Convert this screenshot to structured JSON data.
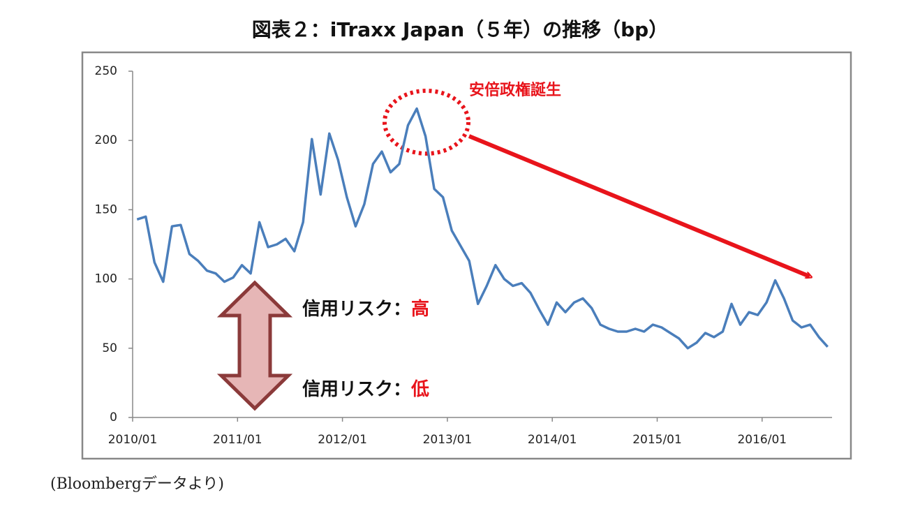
{
  "chart_data": {
    "type": "line",
    "title": "図表２：iTraxx Japan（５年）の推移（bp）",
    "source": "(Bloombergデータより)",
    "annotations": {
      "event": "安倍政権誕生",
      "risk_high_prefix": "信用リスク：",
      "risk_high": "高",
      "risk_low_prefix": "信用リスク：",
      "risk_low": "低"
    },
    "categories": [
      "2010/01",
      null,
      null,
      null,
      null,
      null,
      null,
      null,
      null,
      null,
      null,
      null,
      "2011/01",
      null,
      null,
      null,
      null,
      null,
      null,
      null,
      null,
      null,
      null,
      null,
      "2012/01",
      null,
      null,
      null,
      null,
      null,
      null,
      null,
      null,
      null,
      null,
      null,
      "2013/01",
      null,
      null,
      null,
      null,
      null,
      null,
      null,
      null,
      null,
      null,
      null,
      "2014/01",
      null,
      null,
      null,
      null,
      null,
      null,
      null,
      null,
      null,
      null,
      null,
      "2015/01",
      null,
      null,
      null,
      null,
      null,
      null,
      null,
      null,
      null,
      null,
      null,
      "2016/01",
      null,
      null,
      null,
      null,
      null,
      null,
      null
    ],
    "series": [
      {
        "name": "iTraxx Japan",
        "color": "#4a7ebb",
        "values": [
          143,
          145,
          112,
          98,
          138,
          139,
          118,
          113,
          106,
          104,
          98,
          101,
          110,
          104,
          141,
          123,
          125,
          129,
          120,
          141,
          201,
          161,
          205,
          186,
          159,
          138,
          154,
          183,
          192,
          177,
          183,
          211,
          223,
          203,
          165,
          159,
          135,
          124,
          113,
          82,
          95,
          110,
          100,
          95,
          97,
          90,
          78,
          67,
          83,
          76,
          83,
          86,
          79,
          67,
          64,
          62,
          62,
          64,
          62,
          67,
          65,
          61,
          57,
          50,
          54,
          61,
          58,
          62,
          82,
          67,
          76,
          74,
          83,
          99,
          86,
          70,
          65,
          67,
          58,
          51
        ]
      }
    ],
    "ylim": [
      0,
      250
    ],
    "yticks": [
      0,
      50,
      100,
      150,
      200,
      250
    ],
    "grid": false
  }
}
